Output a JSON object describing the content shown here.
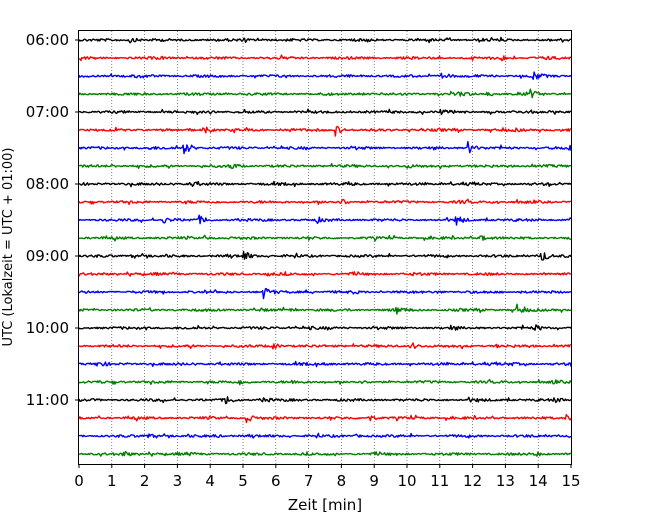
{
  "chart_data": {
    "type": "line",
    "title": "",
    "xlabel": "Zeit  [min]",
    "ylabel": "UTC (Lokalzeit = UTC + 01:00)",
    "xlim": [
      0,
      15
    ],
    "x_ticks": [
      "0",
      "1",
      "2",
      "3",
      "4",
      "5",
      "6",
      "7",
      "8",
      "9",
      "10",
      "11",
      "12",
      "13",
      "14",
      "15"
    ],
    "y_tick_labels": [
      "06:00",
      "07:00",
      "08:00",
      "09:00",
      "10:00",
      "11:00"
    ],
    "grid": "vertical dotted lines at each minute",
    "trace_colors": [
      "#000000",
      "#ff0000",
      "#0000ff",
      "#008000"
    ],
    "traces": [
      {
        "start": "06:00",
        "events": [
          [
            1.55,
            3.2
          ],
          [
            5.0,
            1.2
          ],
          [
            8.7,
            1.4
          ],
          [
            12.2,
            1.1
          ]
        ]
      },
      {
        "start": "06:15",
        "events": [
          [
            2.4,
            1.4
          ],
          [
            12.85,
            3.2
          ],
          [
            14.2,
            1.2
          ]
        ]
      },
      {
        "start": "06:30",
        "events": [
          [
            1.9,
            1.1
          ],
          [
            11.05,
            5.2
          ],
          [
            13.85,
            4.6
          ]
        ]
      },
      {
        "start": "06:45",
        "events": [
          [
            8.5,
            1.6
          ],
          [
            11.6,
            2.6
          ],
          [
            12.45,
            2.6
          ],
          [
            13.75,
            4.0
          ]
        ]
      },
      {
        "start": "07:00",
        "events": [
          [
            4.0,
            1.2
          ],
          [
            11.0,
            2.2
          ],
          [
            14.3,
            1.0
          ]
        ]
      },
      {
        "start": "07:15",
        "events": [
          [
            3.8,
            4.2
          ],
          [
            6.4,
            1.6
          ],
          [
            7.8,
            6.2
          ],
          [
            13.3,
            1.2
          ]
        ]
      },
      {
        "start": "07:30",
        "events": [
          [
            2.05,
            2.0
          ],
          [
            3.2,
            7.2
          ],
          [
            11.85,
            6.8
          ],
          [
            14.9,
            5.5
          ]
        ]
      },
      {
        "start": "07:45",
        "events": [
          [
            1.0,
            1.2
          ],
          [
            4.6,
            4.0
          ],
          [
            10.0,
            1.5
          ]
        ]
      },
      {
        "start": "08:00",
        "events": [
          [
            3.4,
            2.4
          ],
          [
            8.2,
            1.4
          ],
          [
            14.6,
            1.1
          ]
        ]
      },
      {
        "start": "08:15",
        "events": [
          [
            8.0,
            3.2
          ],
          [
            11.6,
            1.4
          ],
          [
            12.6,
            1.1
          ]
        ]
      },
      {
        "start": "08:30",
        "events": [
          [
            2.55,
            3.6
          ],
          [
            3.65,
            4.0
          ],
          [
            7.25,
            2.5
          ],
          [
            11.5,
            5.6
          ]
        ]
      },
      {
        "start": "08:45",
        "events": [
          [
            3.8,
            1.8
          ],
          [
            12.2,
            3.6
          ]
        ]
      },
      {
        "start": "09:00",
        "events": [
          [
            1.6,
            1.2
          ],
          [
            5.0,
            6.2
          ],
          [
            14.1,
            6.4
          ]
        ]
      },
      {
        "start": "09:15",
        "events": [
          [
            2.8,
            1.2
          ],
          [
            5.7,
            2.0
          ],
          [
            10.2,
            1.2
          ]
        ]
      },
      {
        "start": "09:30",
        "events": [
          [
            5.6,
            6.8
          ],
          [
            8.35,
            1.2
          ],
          [
            10.9,
            1.1
          ]
        ]
      },
      {
        "start": "09:45",
        "events": [
          [
            6.4,
            1.2
          ],
          [
            9.65,
            4.0
          ],
          [
            13.35,
            5.2
          ]
        ]
      },
      {
        "start": "10:00",
        "events": [
          [
            7.0,
            1.1
          ],
          [
            11.3,
            2.2
          ],
          [
            13.9,
            3.2
          ]
        ]
      },
      {
        "start": "10:15",
        "events": [
          [
            5.9,
            3.8
          ],
          [
            10.15,
            3.4
          ],
          [
            12.7,
            1.1
          ]
        ]
      },
      {
        "start": "10:30",
        "events": [
          [
            0.55,
            3.6
          ],
          [
            7.5,
            1.2
          ],
          [
            13.1,
            1.1
          ]
        ]
      },
      {
        "start": "10:45",
        "events": [
          [
            4.9,
            2.6
          ],
          [
            6.5,
            1.6
          ],
          [
            14.4,
            1.2
          ]
        ]
      },
      {
        "start": "11:00",
        "events": [
          [
            4.45,
            5.0
          ],
          [
            5.6,
            2.6
          ],
          [
            11.9,
            1.2
          ],
          [
            14.5,
            2.6
          ]
        ]
      },
      {
        "start": "11:15",
        "events": [
          [
            5.1,
            4.8
          ],
          [
            8.8,
            4.6
          ],
          [
            14.85,
            3.0
          ]
        ]
      },
      {
        "start": "11:30",
        "events": [
          [
            2.1,
            2.6
          ],
          [
            4.1,
            1.8
          ],
          [
            8.45,
            1.2
          ]
        ]
      },
      {
        "start": "11:45",
        "events": [
          [
            1.3,
            3.2
          ],
          [
            3.3,
            1.2
          ],
          [
            13.9,
            2.4
          ]
        ]
      }
    ]
  }
}
